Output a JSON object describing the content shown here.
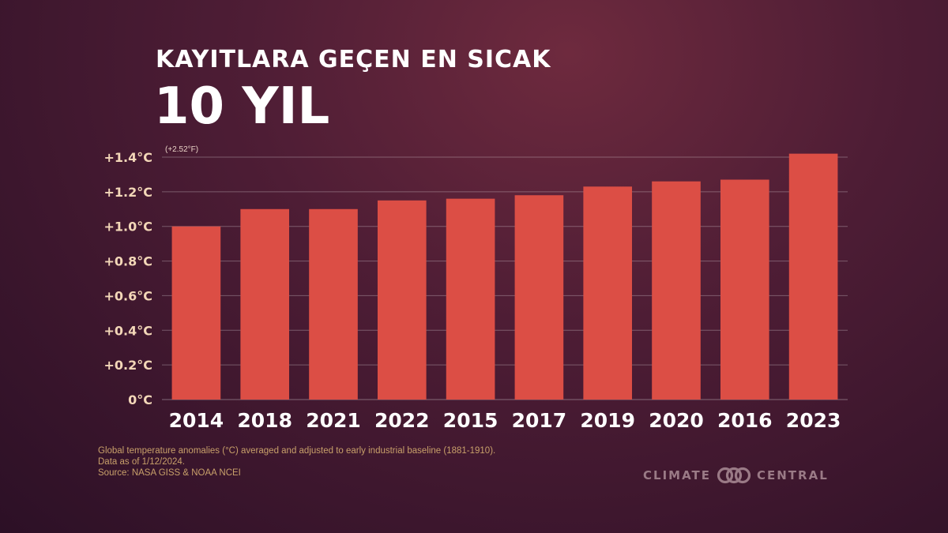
{
  "title": {
    "line1": "KAYITLARA GEÇEN EN SICAK",
    "line2": "10 YIL"
  },
  "chart_data": {
    "type": "bar",
    "categories": [
      "2014",
      "2018",
      "2021",
      "2022",
      "2015",
      "2017",
      "2019",
      "2020",
      "2016",
      "2023"
    ],
    "values": [
      1.0,
      1.1,
      1.1,
      1.15,
      1.16,
      1.18,
      1.23,
      1.26,
      1.27,
      1.42
    ],
    "ylim": [
      0,
      1.4
    ],
    "yticks": [
      0,
      0.2,
      0.4,
      0.6,
      0.8,
      1.0,
      1.2,
      1.4
    ],
    "ytick_labels": [
      "0°C",
      "+0.2°C",
      "+0.4°C",
      "+0.6°C",
      "+0.8°C",
      "+1.0°C",
      "+1.2°C",
      "+1.4°C"
    ],
    "top_annotation": "(+2.52°F)",
    "bar_color": "#dc4e45",
    "grid": true
  },
  "footnote": {
    "line1": "Global temperature anomalies (°C) averaged and adjusted to early industrial baseline (1881-1910).",
    "line2": "Data as of 1/12/2024.",
    "line3": "Source: NASA GISS & NOAA NCEI"
  },
  "brand": {
    "left": "CLIMATE",
    "right": "CENTRAL"
  },
  "colors": {
    "tick_label": "#f3d7b8",
    "year_label": "#ffffff",
    "footnote": "#c8a06a",
    "brand": "#9a7a86"
  }
}
